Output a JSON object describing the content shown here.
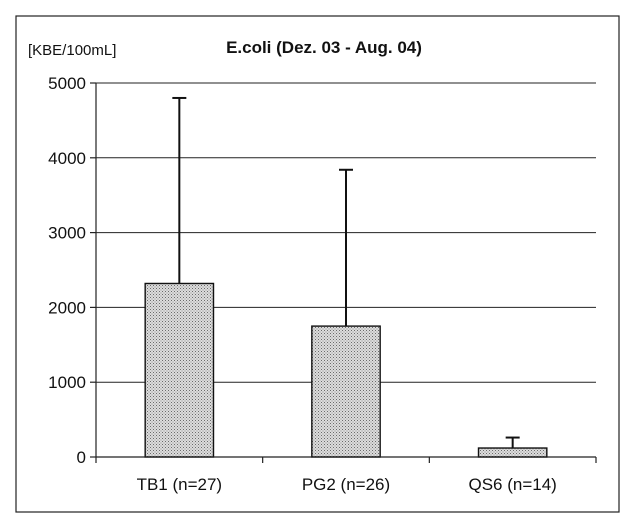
{
  "chart_data": {
    "type": "bar",
    "title": "E.coli (Dez. 03 - Aug. 04)",
    "ylabel": "[KBE/100mL]",
    "xlabel": "",
    "categories": [
      "TB1 (n=27)",
      "PG2 (n=26)",
      "QS6 (n=14)"
    ],
    "values": [
      2320,
      1750,
      120
    ],
    "error_upper": [
      4800,
      3840,
      260
    ],
    "ylim": [
      0,
      5000
    ],
    "yticks": [
      0,
      1000,
      2000,
      3000,
      4000,
      5000
    ],
    "grid": true,
    "legend": "none",
    "colors": {
      "bar_fill": "#c8c8c8",
      "bar_stroke": "#111111",
      "grid": "#222222",
      "text": "#111111",
      "frame": "#222222"
    }
  }
}
